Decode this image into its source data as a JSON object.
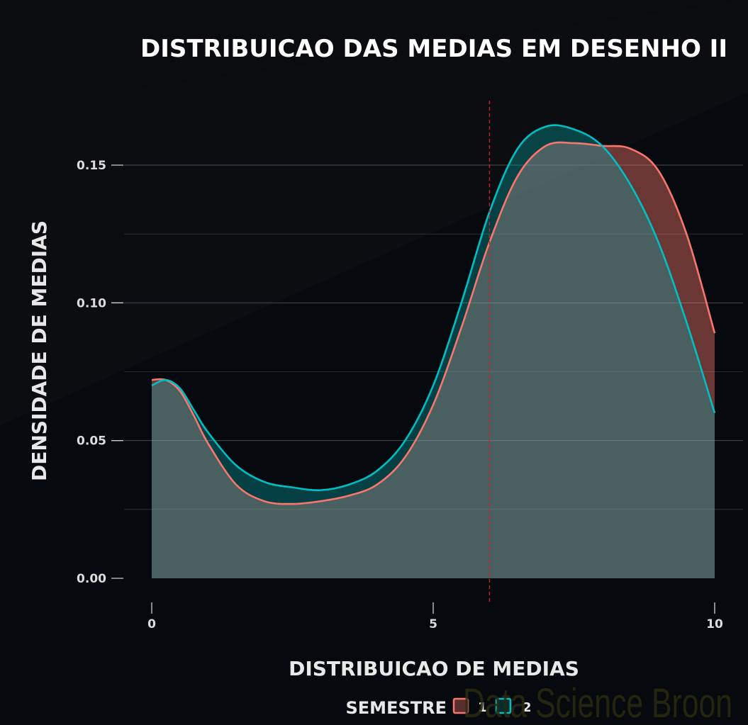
{
  "chart_data": {
    "type": "area",
    "title": "DISTRIBUICAO DAS MEDIAS EM DESENHO II",
    "xlabel": "DISTRIBUICAO DE MEDIAS",
    "ylabel": "DENSIDADE DE MEDIAS",
    "xlim": [
      0,
      10
    ],
    "ylim": [
      0,
      0.17
    ],
    "x_ticks": [
      0,
      5,
      10
    ],
    "x_tick_labels": [
      "0",
      "5",
      "10"
    ],
    "y_ticks": [
      0,
      0.05,
      0.1,
      0.15
    ],
    "y_tick_labels": [
      "0.00",
      "0.05",
      "0.10",
      "0.15"
    ],
    "grid": true,
    "vline": {
      "x": 6.0,
      "color": "#d02020"
    },
    "legend": {
      "title": "SEMESTRE",
      "placement": "bottom"
    },
    "series": [
      {
        "name": "1",
        "color": "#f8766d",
        "x": [
          0,
          0.25,
          0.5,
          0.75,
          1,
          1.5,
          2,
          2.5,
          3,
          3.5,
          4,
          4.5,
          5,
          5.5,
          6,
          6.5,
          7,
          7.5,
          8,
          8.5,
          9,
          9.5,
          10
        ],
        "y": [
          0.072,
          0.072,
          0.068,
          0.059,
          0.049,
          0.034,
          0.028,
          0.027,
          0.028,
          0.03,
          0.034,
          0.044,
          0.063,
          0.091,
          0.122,
          0.146,
          0.157,
          0.158,
          0.157,
          0.156,
          0.148,
          0.125,
          0.089
        ]
      },
      {
        "name": "2",
        "color": "#00bfc4",
        "x": [
          0,
          0.25,
          0.5,
          0.75,
          1,
          1.5,
          2,
          2.5,
          3,
          3.5,
          4,
          4.5,
          5,
          5.5,
          6,
          6.5,
          7,
          7.5,
          8,
          8.5,
          9,
          9.5,
          10
        ],
        "y": [
          0.07,
          0.072,
          0.069,
          0.061,
          0.053,
          0.041,
          0.035,
          0.033,
          0.032,
          0.034,
          0.039,
          0.05,
          0.07,
          0.1,
          0.133,
          0.156,
          0.164,
          0.163,
          0.157,
          0.143,
          0.122,
          0.093,
          0.06
        ]
      }
    ]
  },
  "watermark": "Data Science Broon"
}
